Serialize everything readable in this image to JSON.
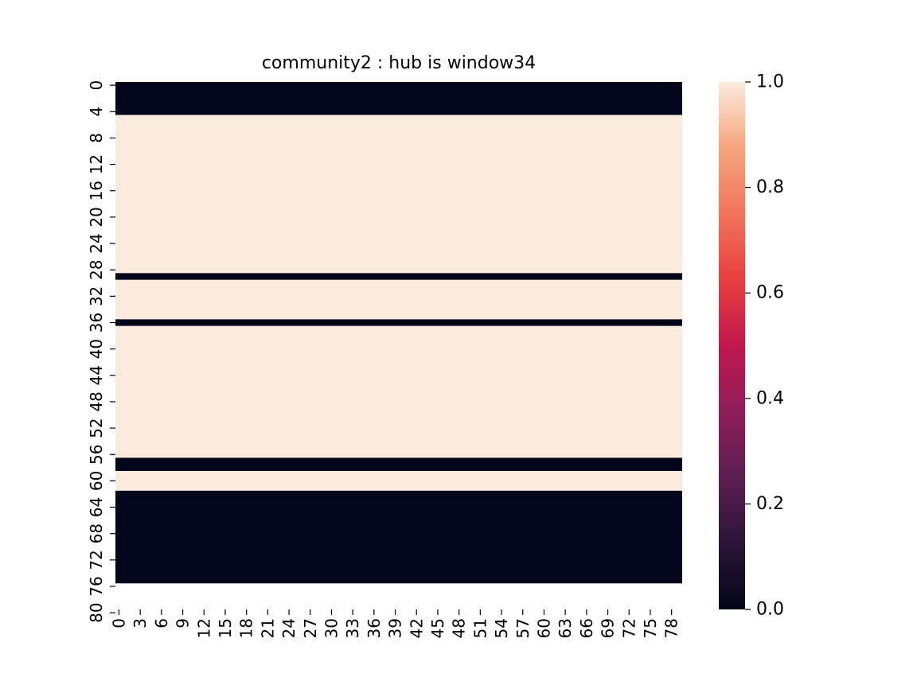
{
  "chart_data": {
    "type": "heatmap",
    "title": "community2 : hub is window34",
    "xlabel": "",
    "ylabel": "",
    "n_cols": 80,
    "n_rows": 80,
    "x_ticks": [
      "0",
      "3",
      "6",
      "9",
      "12",
      "15",
      "18",
      "21",
      "24",
      "27",
      "30",
      "33",
      "36",
      "39",
      "42",
      "45",
      "48",
      "51",
      "54",
      "57",
      "60",
      "63",
      "66",
      "69",
      "72",
      "75",
      "78"
    ],
    "y_ticks": [
      "0",
      "4",
      "8",
      "12",
      "16",
      "20",
      "24",
      "28",
      "32",
      "36",
      "40",
      "44",
      "48",
      "52",
      "56",
      "60",
      "64",
      "68",
      "72",
      "76",
      "80"
    ],
    "row_values": [
      0,
      0,
      0,
      0,
      0,
      1,
      1,
      1,
      1,
      1,
      1,
      1,
      1,
      1,
      1,
      1,
      1,
      1,
      1,
      1,
      1,
      1,
      1,
      1,
      1,
      1,
      1,
      1,
      1,
      0,
      1,
      1,
      1,
      1,
      1,
      1,
      0,
      1,
      1,
      1,
      1,
      1,
      1,
      1,
      1,
      1,
      1,
      1,
      1,
      1,
      1,
      1,
      1,
      1,
      1,
      1,
      1,
      0,
      0,
      1,
      1,
      1,
      0,
      0,
      0,
      0,
      0,
      0,
      0,
      0,
      0,
      0,
      0,
      0,
      0,
      0
    ],
    "colorbar": {
      "range": [
        0.0,
        1.0
      ],
      "ticks": [
        "0.0",
        "0.2",
        "0.4",
        "0.6",
        "0.8",
        "1.0"
      ],
      "colors": [
        "#03051a",
        "#2b1538",
        "#5b1e51",
        "#8f1d59",
        "#c2174f",
        "#e83f3f",
        "#f1745a",
        "#f6a47d",
        "#faebdd"
      ]
    }
  }
}
